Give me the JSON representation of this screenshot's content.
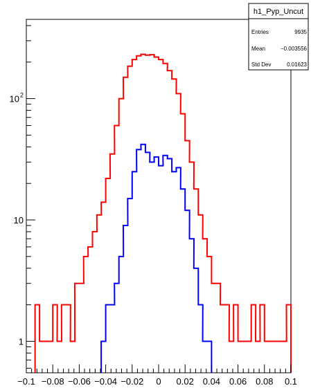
{
  "chart_data": {
    "type": "histogram",
    "title": "",
    "xlabel": "",
    "ylabel": "",
    "xlim": [
      -0.1,
      0.1
    ],
    "ylim": [
      0.55,
      450
    ],
    "yscale": "log",
    "grid": false,
    "x_ticks": [
      "−0.1",
      "−0.08",
      "−0.06",
      "−0.04",
      "−0.02",
      "0",
      "0.02",
      "0.04",
      "0.06",
      "0.08",
      "0.1"
    ],
    "x_tick_values": [
      -0.1,
      -0.08,
      -0.06,
      -0.04,
      -0.02,
      0,
      0.02,
      0.04,
      0.06,
      0.08,
      0.1
    ],
    "y_ticks": [
      "1",
      "10",
      "10"
    ],
    "y_tick_exponent": "2",
    "y_tick_values": [
      1,
      10,
      100
    ],
    "stats_box": {
      "name": "h1_Pyp_Uncut",
      "entries_label": "Entries",
      "entries_value": "9935",
      "mean_label": "Mean",
      "mean_value": "−0.003556",
      "stddev_label": "Std Dev",
      "stddev_value": "0.01623"
    },
    "series": [
      {
        "color": "#ff0000",
        "x": [
          -0.0917,
          -0.0883,
          -0.085,
          -0.0817,
          -0.0783,
          -0.075,
          -0.0717,
          -0.0683,
          -0.065,
          -0.0617,
          -0.0583,
          -0.055,
          -0.0517,
          -0.0483,
          -0.045,
          -0.0417,
          -0.0383,
          -0.035,
          -0.0317,
          -0.0283,
          -0.025,
          -0.0217,
          -0.0183,
          -0.015,
          -0.0117,
          -0.0083,
          -0.005,
          -0.0017,
          0.0017,
          0.005,
          0.0083,
          0.0117,
          0.015,
          0.0183,
          0.0217,
          0.025,
          0.0283,
          0.0317,
          0.035,
          0.0383,
          0.0417,
          0.045,
          0.0483,
          0.0517,
          0.055,
          0.0583,
          0.0617,
          0.065,
          0.0683,
          0.0717,
          0.075,
          0.0783,
          0.0817,
          0.085,
          0.0883,
          0.0917,
          0.095,
          0.0983
        ],
        "y": [
          2,
          1,
          1,
          1,
          2,
          1,
          2,
          2,
          1,
          3,
          3,
          5,
          6,
          8,
          11,
          14,
          22,
          35,
          60,
          100,
          150,
          185,
          210,
          225,
          232,
          228,
          230,
          220,
          210,
          195,
          170,
          145,
          110,
          75,
          45,
          30,
          18,
          11,
          7,
          5,
          3,
          3,
          2,
          2,
          1,
          2,
          1,
          1,
          1,
          2,
          1,
          2,
          1,
          1,
          1,
          1,
          1,
          2
        ]
      },
      {
        "color": "#0000ff",
        "x": [
          -0.0417,
          -0.0383,
          -0.035,
          -0.0317,
          -0.0283,
          -0.025,
          -0.0217,
          -0.0183,
          -0.015,
          -0.0117,
          -0.0083,
          -0.005,
          -0.0017,
          0.0017,
          0.005,
          0.0083,
          0.0117,
          0.015,
          0.0183,
          0.0217,
          0.025,
          0.0283,
          0.0317,
          0.035,
          0.0383
        ],
        "y": [
          1,
          2,
          2,
          3,
          5,
          9,
          15,
          25,
          38,
          42,
          36,
          30,
          33,
          28,
          34,
          32,
          25,
          27,
          18,
          12,
          7,
          4,
          2,
          1,
          1
        ]
      }
    ]
  }
}
